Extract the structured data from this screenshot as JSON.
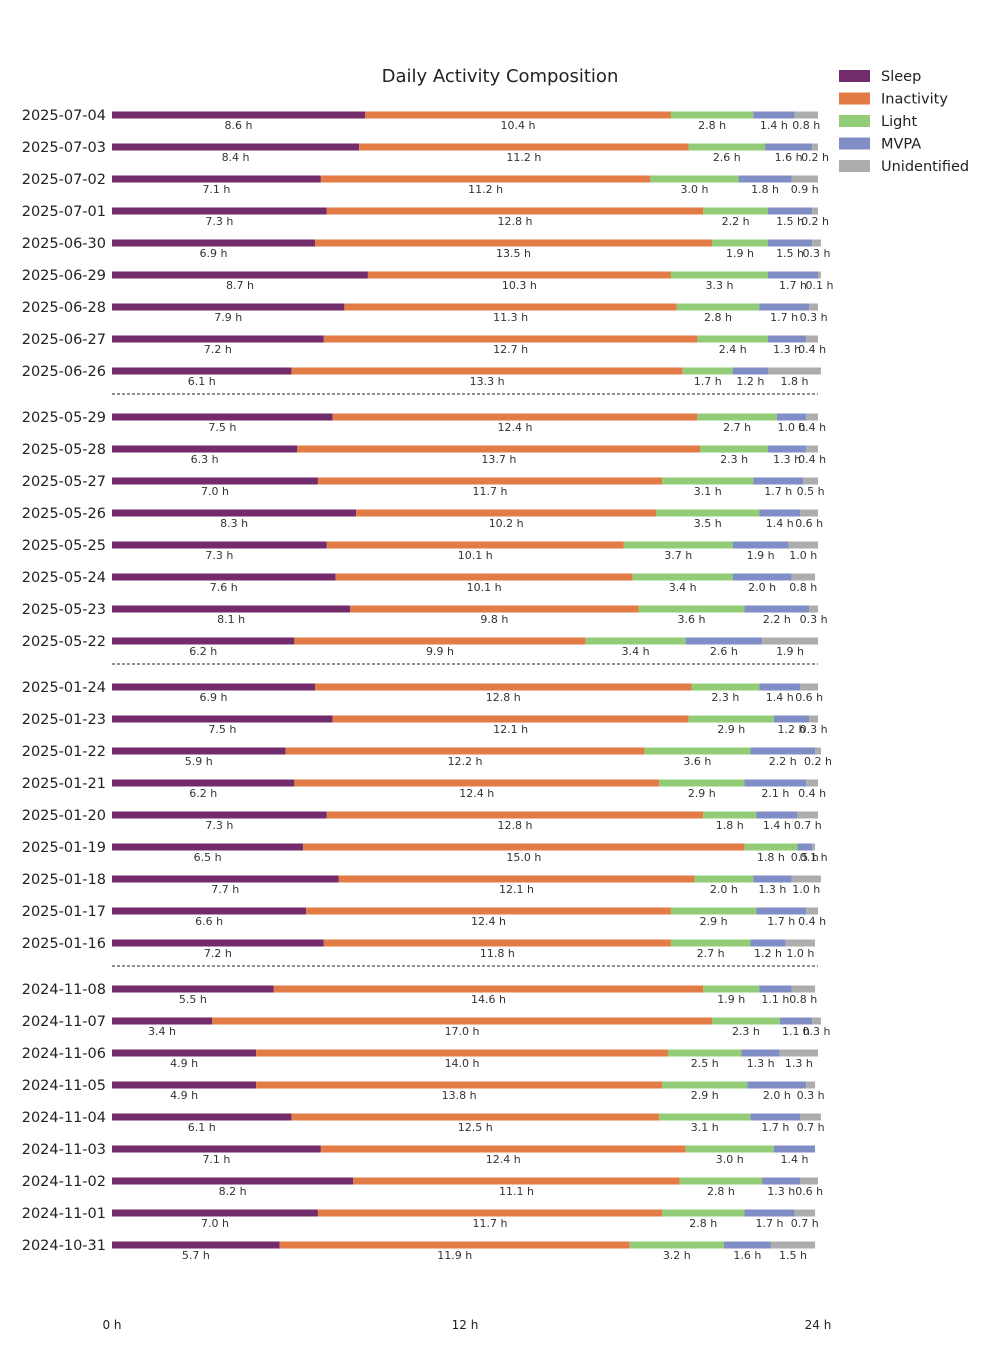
{
  "chart_data": {
    "type": "bar",
    "orientation": "horizontal",
    "stacked": true,
    "title": "Daily Activity Composition",
    "xlim": [
      0,
      24
    ],
    "x_ticks": [
      "0 h",
      "12 h",
      "24 h"
    ],
    "unit": "h",
    "legend": {
      "placement": "top-right",
      "entries": [
        "Sleep",
        "Inactivity",
        "Light",
        "MVPA",
        "Unidentified"
      ]
    },
    "colors": {
      "Sleep": "#722b6b",
      "Inactivity": "#e27b46",
      "Light": "#93cc76",
      "MVPA": "#818ec6",
      "Unidentified": "#adadad"
    },
    "groups": [
      {
        "rows": [
          {
            "date": "2025-07-04",
            "values": [
              8.6,
              10.4,
              2.8,
              1.4,
              0.8
            ]
          },
          {
            "date": "2025-07-03",
            "values": [
              8.4,
              11.2,
              2.6,
              1.6,
              0.2
            ]
          },
          {
            "date": "2025-07-02",
            "values": [
              7.1,
              11.2,
              3.0,
              1.8,
              0.9
            ]
          },
          {
            "date": "2025-07-01",
            "values": [
              7.3,
              12.8,
              2.2,
              1.5,
              0.2
            ]
          },
          {
            "date": "2025-06-30",
            "values": [
              6.9,
              13.5,
              1.9,
              1.5,
              0.3
            ]
          },
          {
            "date": "2025-06-29",
            "values": [
              8.7,
              10.3,
              3.3,
              1.7,
              0.1
            ]
          },
          {
            "date": "2025-06-28",
            "values": [
              7.9,
              11.3,
              2.8,
              1.7,
              0.3
            ]
          },
          {
            "date": "2025-06-27",
            "values": [
              7.2,
              12.7,
              2.4,
              1.3,
              0.4
            ]
          },
          {
            "date": "2025-06-26",
            "values": [
              6.1,
              13.3,
              1.7,
              1.2,
              1.8
            ]
          }
        ]
      },
      {
        "rows": [
          {
            "date": "2025-05-29",
            "values": [
              7.5,
              12.4,
              2.7,
              1.0,
              0.4
            ]
          },
          {
            "date": "2025-05-28",
            "values": [
              6.3,
              13.7,
              2.3,
              1.3,
              0.4
            ]
          },
          {
            "date": "2025-05-27",
            "values": [
              7.0,
              11.7,
              3.1,
              1.7,
              0.5
            ]
          },
          {
            "date": "2025-05-26",
            "values": [
              8.3,
              10.2,
              3.5,
              1.4,
              0.6
            ]
          },
          {
            "date": "2025-05-25",
            "values": [
              7.3,
              10.1,
              3.7,
              1.9,
              1.0
            ]
          },
          {
            "date": "2025-05-24",
            "values": [
              7.6,
              10.1,
              3.4,
              2.0,
              0.8
            ]
          },
          {
            "date": "2025-05-23",
            "values": [
              8.1,
              9.8,
              3.6,
              2.2,
              0.3
            ]
          },
          {
            "date": "2025-05-22",
            "values": [
              6.2,
              9.9,
              3.4,
              2.6,
              1.9
            ]
          }
        ]
      },
      {
        "rows": [
          {
            "date": "2025-01-24",
            "values": [
              6.9,
              12.8,
              2.3,
              1.4,
              0.6
            ]
          },
          {
            "date": "2025-01-23",
            "values": [
              7.5,
              12.1,
              2.9,
              1.2,
              0.3
            ]
          },
          {
            "date": "2025-01-22",
            "values": [
              5.9,
              12.2,
              3.6,
              2.2,
              0.2
            ]
          },
          {
            "date": "2025-01-21",
            "values": [
              6.2,
              12.4,
              2.9,
              2.1,
              0.4
            ]
          },
          {
            "date": "2025-01-20",
            "values": [
              7.3,
              12.8,
              1.8,
              1.4,
              0.7
            ]
          },
          {
            "date": "2025-01-19",
            "values": [
              6.5,
              15.0,
              1.8,
              0.5,
              0.1
            ]
          },
          {
            "date": "2025-01-18",
            "values": [
              7.7,
              12.1,
              2.0,
              1.3,
              1.0
            ]
          },
          {
            "date": "2025-01-17",
            "values": [
              6.6,
              12.4,
              2.9,
              1.7,
              0.4
            ]
          },
          {
            "date": "2025-01-16",
            "values": [
              7.2,
              11.8,
              2.7,
              1.2,
              1.0
            ]
          }
        ]
      },
      {
        "rows": [
          {
            "date": "2024-11-08",
            "values": [
              5.5,
              14.6,
              1.9,
              1.1,
              0.8
            ]
          },
          {
            "date": "2024-11-07",
            "values": [
              3.4,
              17.0,
              2.3,
              1.1,
              0.3
            ]
          },
          {
            "date": "2024-11-06",
            "values": [
              4.9,
              14.0,
              2.5,
              1.3,
              1.3
            ]
          },
          {
            "date": "2024-11-05",
            "values": [
              4.9,
              13.8,
              2.9,
              2.0,
              0.3
            ]
          },
          {
            "date": "2024-11-04",
            "values": [
              6.1,
              12.5,
              3.1,
              1.7,
              0.7
            ]
          },
          {
            "date": "2024-11-03",
            "values": [
              7.1,
              12.4,
              3.0,
              1.4,
              0.0
            ]
          },
          {
            "date": "2024-11-02",
            "values": [
              8.2,
              11.1,
              2.8,
              1.3,
              0.6
            ]
          },
          {
            "date": "2024-11-01",
            "values": [
              7.0,
              11.7,
              2.8,
              1.7,
              0.7
            ]
          },
          {
            "date": "2024-10-31",
            "values": [
              5.7,
              11.9,
              3.2,
              1.6,
              1.5
            ]
          }
        ]
      }
    ]
  }
}
